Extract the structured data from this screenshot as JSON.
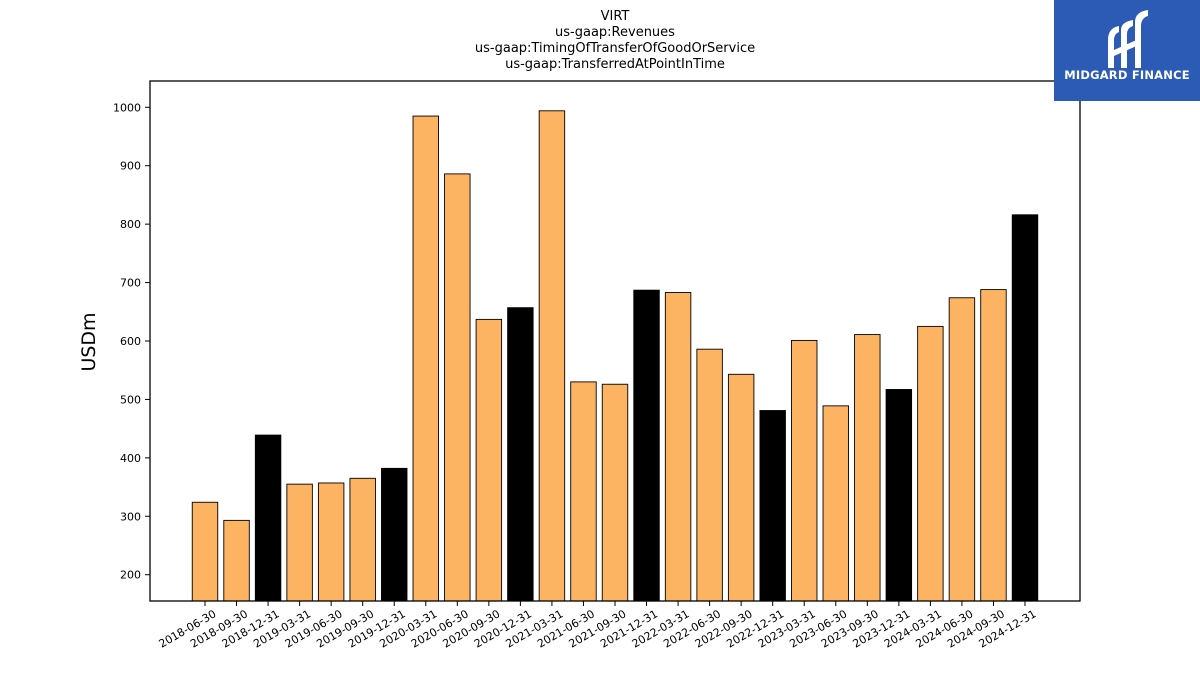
{
  "chart_data": {
    "type": "bar",
    "title_lines": [
      "VIRT",
      "us-gaap:Revenues",
      "us-gaap:TimingOfTransferOfGoodOrService",
      "us-gaap:TransferredAtPointInTime"
    ],
    "ylabel": "USDm",
    "xlabel": "",
    "ylim": [
      155,
      1045
    ],
    "yticks": [
      200,
      300,
      400,
      500,
      600,
      700,
      800,
      900,
      1000
    ],
    "categories": [
      "2018-06-30",
      "2018-09-30",
      "2018-12-31",
      "2019-03-31",
      "2019-06-30",
      "2019-09-30",
      "2019-12-31",
      "2020-03-31",
      "2020-06-30",
      "2020-09-30",
      "2020-12-31",
      "2021-03-31",
      "2021-06-30",
      "2021-09-30",
      "2021-12-31",
      "2022-03-31",
      "2022-06-30",
      "2022-09-30",
      "2022-12-31",
      "2023-03-31",
      "2023-06-30",
      "2023-09-30",
      "2023-12-31",
      "2024-03-31",
      "2024-06-30",
      "2024-09-30",
      "2024-12-31"
    ],
    "values": [
      324,
      293,
      439,
      355,
      357,
      365,
      382,
      985,
      886,
      637,
      657,
      994,
      530,
      526,
      687,
      683,
      586,
      543,
      481,
      601,
      489,
      611,
      517,
      625,
      674,
      688,
      816
    ],
    "bar_colors": {
      "quarter": "#fdb462",
      "year_end": "#000000"
    },
    "grid": false,
    "legend": "none"
  },
  "logo": {
    "text": "MIDGARD FINANCE",
    "color": "#2b5bb5"
  }
}
